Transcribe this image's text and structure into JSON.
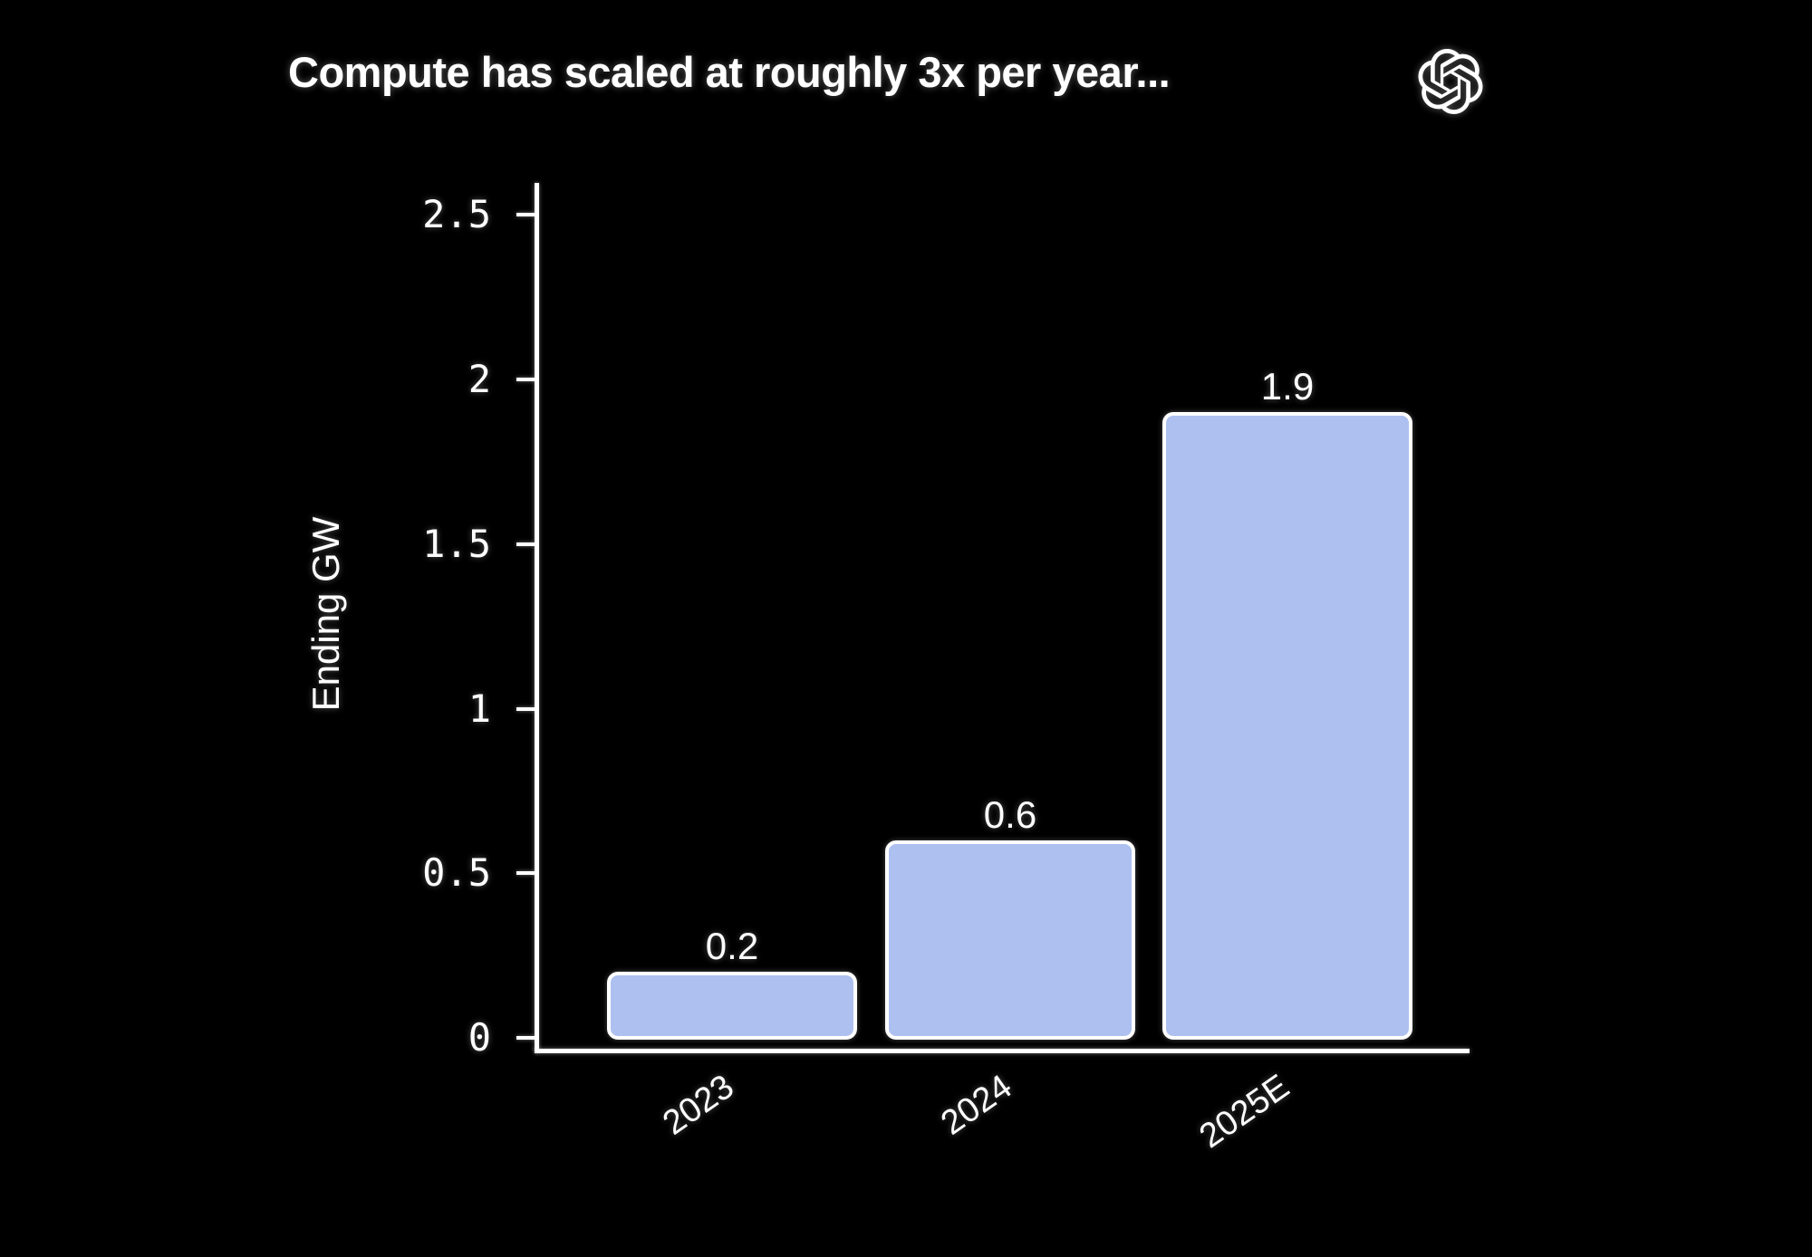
{
  "page": {
    "background": "#000000"
  },
  "header": {
    "title": "Compute has scaled at roughly 3x per year...",
    "logo_icon": "openai-logo"
  },
  "chart_data": {
    "type": "bar",
    "title": "Compute has scaled at roughly 3x per year...",
    "ylabel": "Ending GW",
    "categories": [
      "2023",
      "2024",
      "2025E"
    ],
    "values": [
      0.2,
      0.6,
      1.9
    ],
    "bar_labels": [
      "0.2",
      "0.6",
      "1.9"
    ],
    "yticks": [
      0,
      0.5,
      1,
      1.5,
      2,
      2.5
    ],
    "ytick_labels": [
      "0",
      "0.5",
      "1",
      "1.5",
      "2",
      "2.5"
    ],
    "ylim": [
      0,
      2.5
    ],
    "grid": false,
    "legend_position": "none",
    "x_tick_rotation_deg": 35,
    "colors": {
      "background": "#000000",
      "bar_fill": "#adc0f0",
      "bar_border": "#ffffff",
      "axis": "#ffffff",
      "text": "#ffffff"
    }
  }
}
